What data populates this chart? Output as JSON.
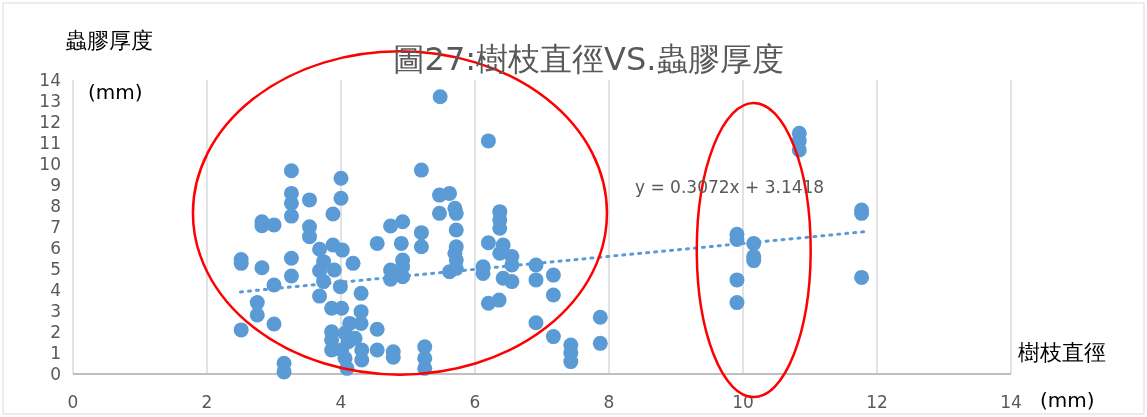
{
  "chart_data": {
    "type": "scatter",
    "title": "圖27:樹枝直徑VS.蟲膠厚度",
    "xlabel": "樹枝直徑\n(mm)",
    "ylabel": "蟲膠厚度\n(mm)",
    "xlim": [
      0,
      14
    ],
    "xticks": [
      0,
      2,
      4,
      6,
      8,
      10,
      12,
      14
    ],
    "ylim": [
      0,
      14
    ],
    "yticks": [
      0,
      1,
      2,
      3,
      4,
      5,
      6,
      7,
      8,
      9,
      10,
      11,
      12,
      13,
      14
    ],
    "grid": "x",
    "marker": "circle",
    "annotations": [
      "y = 0.3072x + 3.1418"
    ],
    "series": [
      {
        "color": "#5b9bd5",
        "x": [
          3.26,
          3.26,
          3.26,
          3.26,
          3.53,
          4.0,
          4.0,
          3.88,
          5.2,
          2.82,
          2.82,
          3.0,
          3.26,
          3.26,
          2.51,
          2.82,
          3.0,
          2.75,
          2.75,
          3.0,
          2.51,
          3.15,
          3.15,
          3.53,
          3.53,
          3.68,
          3.88,
          4.02,
          3.74,
          3.68,
          3.9,
          4.18,
          3.74,
          3.99,
          3.68,
          3.86,
          4.01,
          4.3,
          4.3,
          4.3,
          4.13,
          4.54,
          4.54,
          4.54,
          4.78,
          4.78,
          3.86,
          3.86,
          3.86,
          4.06,
          4.11,
          4.21,
          4.01,
          4.06,
          4.09,
          4.31,
          4.31,
          4.74,
          4.92,
          5.2,
          5.2,
          4.9,
          4.92,
          4.92,
          4.74,
          4.74,
          4.92,
          5.25,
          5.25,
          5.25,
          2.51,
          5.48,
          6.2,
          5.47,
          5.62,
          5.47,
          5.7,
          5.72,
          5.72,
          5.72,
          5.7,
          5.72,
          5.72,
          5.62,
          6.37,
          6.37,
          6.37,
          6.2,
          6.42,
          6.37,
          6.55,
          6.55,
          6.12,
          6.12,
          6.42,
          6.55,
          6.2,
          6.36,
          6.91,
          6.91,
          7.17,
          7.17,
          6.91,
          7.17,
          7.43,
          7.43,
          7.43,
          7.87,
          7.87,
          10.84,
          10.84,
          10.84,
          11.77,
          11.77,
          11.77,
          9.91,
          9.91,
          10.16,
          10.16,
          10.16,
          9.91,
          9.91
        ],
        "values": [
          9.68,
          8.6,
          8.13,
          7.52,
          8.29,
          9.32,
          8.37,
          7.62,
          9.71,
          7.25,
          7.06,
          7.1,
          5.51,
          4.67,
          5.27,
          5.06,
          4.24,
          3.4,
          2.81,
          2.38,
          2.1,
          0.51,
          0.1,
          7.01,
          6.54,
          5.94,
          6.14,
          5.9,
          5.35,
          4.92,
          4.95,
          5.27,
          4.4,
          4.16,
          3.71,
          3.13,
          3.13,
          3.84,
          2.97,
          2.41,
          2.41,
          6.22,
          2.13,
          1.14,
          1.06,
          0.8,
          2.01,
          1.62,
          1.14,
          1.94,
          1.54,
          1.7,
          1.14,
          0.75,
          0.27,
          1.14,
          0.67,
          7.05,
          7.25,
          6.73,
          6.06,
          6.22,
          5.43,
          5.11,
          4.95,
          4.51,
          4.63,
          1.3,
          0.75,
          0.27,
          5.45,
          13.2,
          11.1,
          8.52,
          8.6,
          7.65,
          7.89,
          7.65,
          6.86,
          6.06,
          5.75,
          5.43,
          5.03,
          4.87,
          7.73,
          7.33,
          6.94,
          6.25,
          6.14,
          5.75,
          5.59,
          5.19,
          5.11,
          4.79,
          4.56,
          4.4,
          3.37,
          3.52,
          5.19,
          4.48,
          4.71,
          3.76,
          2.44,
          1.78,
          1.38,
          1.01,
          0.59,
          2.7,
          1.46,
          11.46,
          11.1,
          10.67,
          7.81,
          7.65,
          4.6,
          6.65,
          6.41,
          6.22,
          5.59,
          5.4,
          4.48,
          3.4
        ]
      },
      {
        "type": "line",
        "color": "#5b9bd5",
        "line_style": "dotted",
        "marker": "none",
        "x": [
          2.5,
          11.8
        ],
        "values": [
          3.91,
          6.77
        ]
      }
    ]
  }
}
